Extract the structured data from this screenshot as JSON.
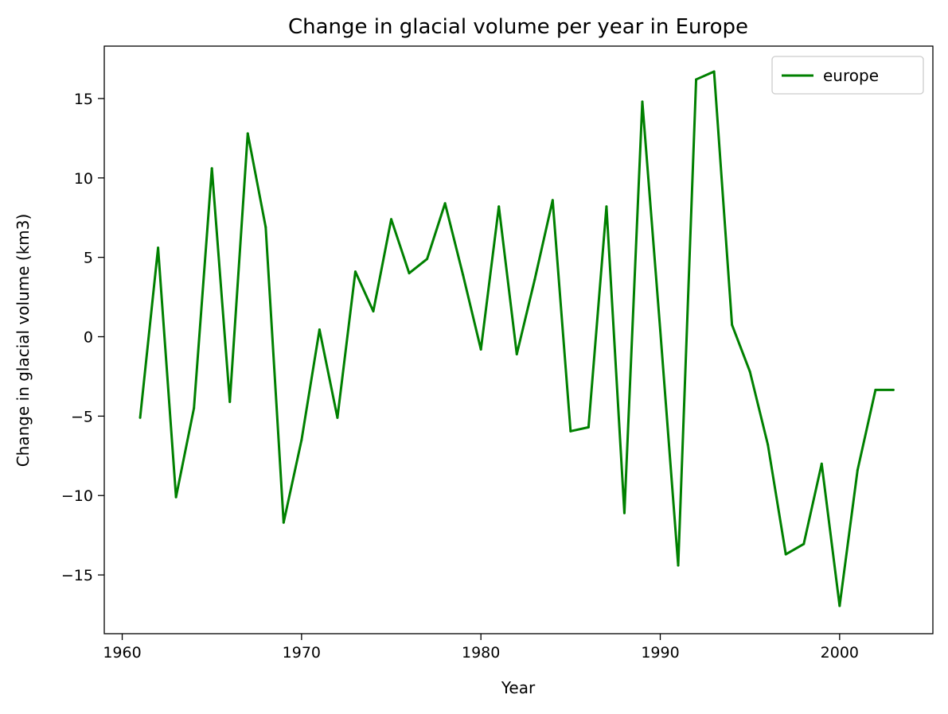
{
  "chart_data": {
    "type": "line",
    "title": "Change in glacial volume per year in Europe",
    "xlabel": "Year",
    "ylabel": "Change in glacial volume (km3)",
    "xlim": [
      1959,
      2005.2
    ],
    "ylim": [
      -18.7,
      18.3
    ],
    "x_ticks": [
      1960,
      1970,
      1980,
      1990,
      2000
    ],
    "y_ticks": [
      -15,
      -10,
      -5,
      0,
      5,
      10,
      15
    ],
    "y_tick_labels": [
      "−15",
      "−10",
      "−5",
      "0",
      "5",
      "10",
      "15"
    ],
    "grid": false,
    "legend_position": "top-right",
    "series": [
      {
        "name": "europe",
        "color": "#008000",
        "x": [
          1961,
          1962,
          1963,
          1964,
          1965,
          1966,
          1967,
          1968,
          1969,
          1970,
          1971,
          1972,
          1973,
          1974,
          1975,
          1976,
          1977,
          1978,
          1979,
          1980,
          1981,
          1982,
          1983,
          1984,
          1985,
          1986,
          1987,
          1988,
          1989,
          1990,
          1991,
          1992,
          1993,
          1994,
          1995,
          1996,
          1997,
          1998,
          1999,
          2000,
          2001,
          2002,
          2003
        ],
        "values": [
          -5.1,
          5.6,
          -10.1,
          -4.5,
          10.6,
          -4.1,
          12.8,
          6.9,
          -11.7,
          -6.5,
          0.45,
          -5.1,
          4.1,
          1.6,
          7.4,
          4.0,
          4.9,
          8.4,
          3.9,
          -0.8,
          8.2,
          -1.1,
          3.6,
          8.6,
          -5.95,
          -5.7,
          8.2,
          -11.1,
          14.8,
          0.4,
          -14.4,
          16.2,
          16.7,
          0.75,
          -2.2,
          -6.8,
          -13.7,
          -13.05,
          -8.0,
          -16.95,
          -8.4,
          -3.35,
          -3.35
        ]
      }
    ]
  }
}
